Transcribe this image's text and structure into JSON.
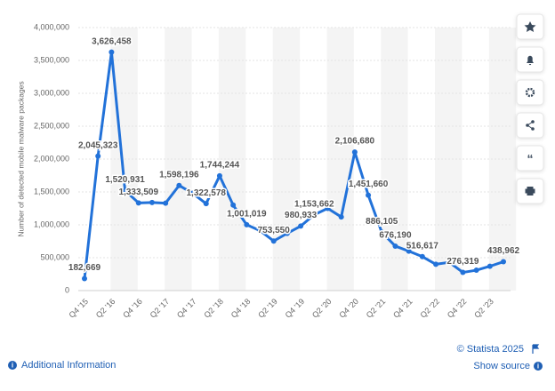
{
  "chart_data": {
    "type": "line",
    "y_axis_label": "Number of detected mobile malware packages",
    "categories": [
      "Q4 '15",
      null,
      "Q2 '16",
      null,
      "Q4 '16",
      null,
      "Q2 '17",
      null,
      "Q4 '17",
      null,
      "Q2 '18",
      null,
      "Q4 '18",
      null,
      "Q2 '19",
      null,
      "Q4 '19",
      null,
      "Q2 '20",
      null,
      "Q4 '20",
      null,
      "Q2 '21",
      null,
      "Q4 '21",
      null,
      "Q2 '22",
      null,
      "Q4 '22",
      null,
      "Q2 '23",
      null
    ],
    "series": [
      {
        "name": "Detected mobile malware packages",
        "color": "#2272d9",
        "values": [
          182669,
          2045323,
          3626458,
          1520931,
          1333509,
          1340000,
          1330000,
          1598196,
          1480000,
          1322578,
          1744244,
          1300000,
          1001019,
          910000,
          753550,
          870000,
          980933,
          1153662,
          1250000,
          1120000,
          2106680,
          1451660,
          886105,
          676190,
          600000,
          516617,
          400000,
          430000,
          276319,
          310000,
          370000,
          438962
        ],
        "value_labels": [
          "182,669",
          "2,045,323",
          "3,626,458",
          "1,520,931",
          "1,333,509",
          null,
          null,
          "1,598,196",
          null,
          "1,322,578",
          "1,744,244",
          null,
          "1,001,019",
          null,
          "753,550",
          null,
          "980,933",
          "1,153,662",
          null,
          null,
          "2,106,680",
          "1,451,660",
          "886,105",
          "676,190",
          null,
          "516,617",
          null,
          null,
          "276,319",
          null,
          null,
          "438,962"
        ]
      }
    ],
    "ylim": [
      0,
      4000000
    ],
    "yticks": [
      0,
      {
        "value": 500000,
        "label": "500,000"
      },
      {
        "value": 1000000,
        "label": "1,000,000"
      },
      {
        "value": 1500000,
        "label": "1,500,000"
      },
      {
        "value": 2000000,
        "label": "2,000,000"
      },
      {
        "value": 2500000,
        "label": "2,500,000"
      },
      {
        "value": 3000000,
        "label": "3,000,000"
      },
      {
        "value": 3500000,
        "label": "3,500,000"
      },
      {
        "value": 4000000,
        "label": "4,000,000"
      }
    ],
    "grid": true,
    "copyright": "© Statista 2025",
    "additional_info": "Additional Information",
    "show_source": "Show source"
  }
}
